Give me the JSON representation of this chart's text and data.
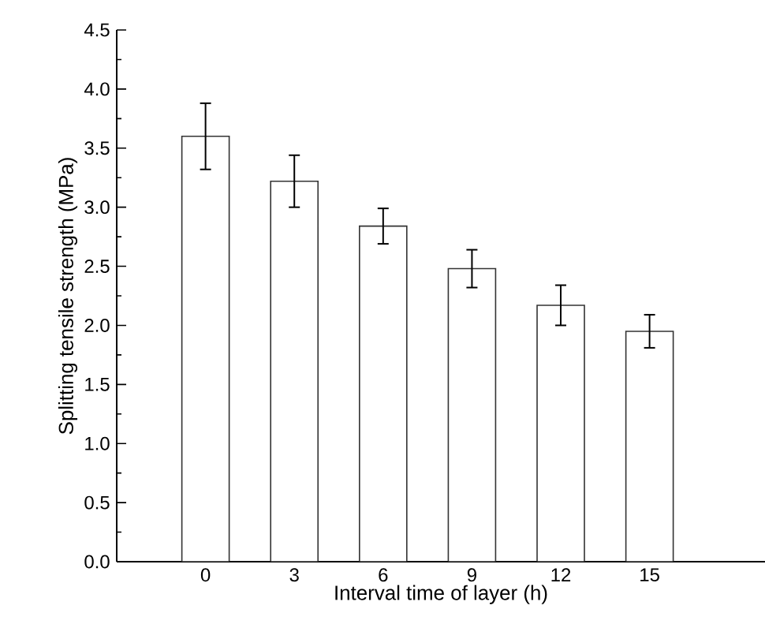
{
  "chart_data": {
    "type": "bar",
    "xlabel": "Interval time of layer (h)",
    "ylabel": "Splitting tensile strength (MPa)",
    "categories": [
      "0",
      "3",
      "6",
      "9",
      "12",
      "15"
    ],
    "values": [
      3.6,
      3.22,
      2.84,
      2.48,
      2.17,
      1.95
    ],
    "errors": [
      0.28,
      0.22,
      0.15,
      0.16,
      0.17,
      0.14
    ],
    "color": "#ffffff",
    "ylim": [
      0,
      4.5
    ],
    "yticks": [
      {
        "value": 0,
        "label": "0.0"
      },
      {
        "value": 0.5,
        "label": "0.5"
      },
      {
        "value": 1,
        "label": "1.0"
      },
      {
        "value": 1.5,
        "label": "1.5"
      },
      {
        "value": 2,
        "label": "2.0"
      },
      {
        "value": 2.5,
        "label": "2.5"
      },
      {
        "value": 3,
        "label": "3.0"
      },
      {
        "value": 3.5,
        "label": "3.5"
      },
      {
        "value": 4,
        "label": "4.0"
      },
      {
        "value": 4.5,
        "label": "4.5"
      }
    ],
    "grid": false
  }
}
